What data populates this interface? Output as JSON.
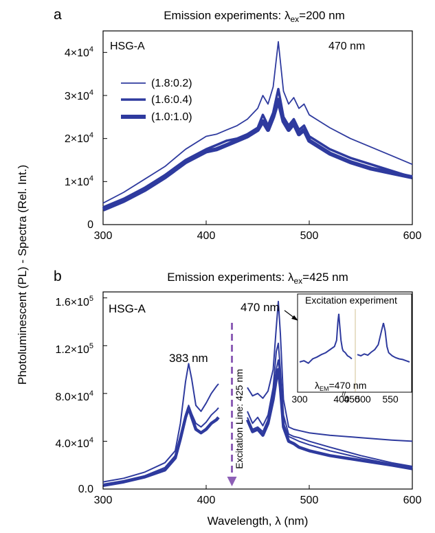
{
  "figure": {
    "ylabel": "Photoluminescent (PL) - Spectra (Rel. Int.)",
    "xlabel": "Wavelength, λ (nm)"
  },
  "chart_data": [
    {
      "panel": "a",
      "type": "line",
      "title": "Emission experiments: λex=200 nm",
      "sample_label": "HSG-A",
      "peak_annotation": "470 nm",
      "xlim": [
        300,
        600
      ],
      "ylim": [
        0,
        45000
      ],
      "x_ticks": [
        "300",
        "400",
        "500",
        "600"
      ],
      "y_ticks": [
        "0",
        "1×10^4",
        "2×10^4",
        "3×10^4",
        "4×10^4"
      ],
      "legend_position": "top-left",
      "color": "#2e3a9e",
      "series": [
        {
          "name": "(1.8:0.2)",
          "x": [
            300,
            320,
            340,
            360,
            380,
            400,
            410,
            420,
            430,
            440,
            450,
            455,
            460,
            465,
            470,
            475,
            480,
            485,
            490,
            495,
            500,
            510,
            520,
            540,
            560,
            580,
            600
          ],
          "y": [
            5000,
            7500,
            10500,
            13500,
            17500,
            20500,
            21000,
            22000,
            23000,
            24500,
            27000,
            30000,
            28000,
            32000,
            42500,
            31000,
            28000,
            29500,
            27000,
            28000,
            25500,
            24000,
            22500,
            20000,
            18000,
            16000,
            14000
          ]
        },
        {
          "name": "(1.6:0.4)",
          "x": [
            300,
            320,
            340,
            360,
            380,
            400,
            410,
            420,
            430,
            440,
            450,
            455,
            460,
            465,
            470,
            475,
            480,
            485,
            490,
            495,
            500,
            510,
            520,
            540,
            560,
            580,
            600
          ],
          "y": [
            4000,
            6000,
            8500,
            11500,
            15000,
            17500,
            18500,
            19500,
            20000,
            21000,
            22500,
            25500,
            23000,
            26000,
            31500,
            25000,
            23000,
            24500,
            22000,
            23000,
            20500,
            19000,
            17500,
            15500,
            14000,
            12500,
            11000
          ]
        },
        {
          "name": "(1.0:1.0)",
          "x": [
            300,
            320,
            340,
            360,
            380,
            400,
            410,
            420,
            430,
            440,
            450,
            455,
            460,
            465,
            470,
            475,
            480,
            485,
            490,
            495,
            500,
            510,
            520,
            540,
            560,
            580,
            600
          ],
          "y": [
            3500,
            5500,
            8000,
            11000,
            14500,
            17000,
            17500,
            18500,
            19500,
            20500,
            22000,
            24000,
            22000,
            25000,
            29000,
            24000,
            22000,
            23500,
            21000,
            22000,
            19500,
            18000,
            16500,
            14500,
            13000,
            12000,
            11000
          ]
        }
      ]
    },
    {
      "panel": "b",
      "type": "line",
      "title": "Emission experiments: λex=425 nm",
      "sample_label": "HSG-A",
      "annotations": [
        "383 nm",
        "470 nm",
        "Excitation Line: 425 nm"
      ],
      "xlim": [
        300,
        600
      ],
      "ylim": [
        0,
        165000
      ],
      "x_ticks": [
        "300",
        "400",
        "500",
        "600"
      ],
      "y_ticks": [
        "0.0",
        "4.0×10^4",
        "8.0×10^4",
        "1.2×10^5",
        "1.6×10^5"
      ],
      "excitation_line_x": 425,
      "color": "#2e3a9e",
      "series": [
        {
          "x": [
            300,
            320,
            340,
            360,
            370,
            375,
            380,
            383,
            386,
            390,
            395,
            400,
            405,
            410,
            412
          ],
          "y": [
            6000,
            9000,
            14000,
            22000,
            32000,
            55000,
            90000,
            105000,
            92000,
            70000,
            65000,
            72000,
            80000,
            86000,
            88000
          ]
        },
        {
          "x": [
            300,
            320,
            340,
            360,
            370,
            375,
            380,
            383,
            386,
            390,
            395,
            400,
            405,
            410,
            412
          ],
          "y": [
            4000,
            7000,
            11000,
            18000,
            28000,
            45000,
            62000,
            70000,
            63000,
            55000,
            52000,
            56000,
            62000,
            66000,
            68000
          ]
        },
        {
          "x": [
            300,
            320,
            340,
            360,
            370,
            375,
            380,
            383,
            386,
            390,
            395,
            400,
            405,
            410,
            412
          ],
          "y": [
            3000,
            6000,
            10000,
            16000,
            26000,
            42000,
            60000,
            68000,
            60000,
            50000,
            47000,
            50000,
            55000,
            58000,
            60000
          ],
          "width": "thick"
        },
        {
          "x": [
            440,
            445,
            450,
            455,
            460,
            465,
            468,
            470,
            472,
            475,
            480,
            485,
            490,
            500,
            520,
            550,
            580,
            600
          ],
          "y": [
            85000,
            78000,
            80000,
            76000,
            82000,
            100000,
            135000,
            157000,
            130000,
            75000,
            52000,
            50000,
            49000,
            47000,
            45000,
            43000,
            41000,
            40000
          ]
        },
        {
          "x": [
            440,
            445,
            450,
            455,
            460,
            465,
            468,
            470,
            472,
            475,
            480,
            485,
            490,
            500,
            520,
            550,
            580,
            600
          ],
          "y": [
            65000,
            55000,
            60000,
            53000,
            62000,
            85000,
            115000,
            122000,
            100000,
            62000,
            46000,
            44000,
            43000,
            40000,
            35000,
            28000,
            22000,
            19000
          ]
        },
        {
          "x": [
            440,
            445,
            450,
            455,
            460,
            465,
            468,
            470,
            472,
            475,
            480,
            485,
            490,
            500,
            520,
            550,
            580,
            600
          ],
          "y": [
            60000,
            50000,
            52000,
            48000,
            58000,
            80000,
            100000,
            108000,
            90000,
            55000,
            44000,
            42000,
            40000,
            37000,
            32000,
            26000,
            21000,
            18000
          ]
        },
        {
          "x": [
            440,
            445,
            450,
            455,
            460,
            465,
            468,
            470,
            472,
            475,
            480,
            485,
            490,
            500,
            520,
            550,
            580,
            600
          ],
          "y": [
            58000,
            48000,
            50000,
            45000,
            55000,
            75000,
            92000,
            100000,
            85000,
            52000,
            40000,
            38000,
            35000,
            32000,
            28000,
            24000,
            20000,
            17000
          ],
          "width": "thick"
        }
      ]
    },
    {
      "panel": "b-inset",
      "type": "line",
      "title": "Excitation experiment",
      "annotation": "λEM=470 nm",
      "xlim": [
        300,
        580
      ],
      "x_ticks": [
        "300",
        "400",
        "450",
        "500",
        "550"
      ],
      "axis_break": true,
      "series": [
        {
          "x": [
            300,
            310,
            320,
            330,
            340,
            350,
            360,
            370,
            380,
            385,
            388,
            390,
            392,
            395,
            398,
            400,
            405,
            410,
            415,
            420
          ],
          "y": [
            0.2,
            0.22,
            0.18,
            0.25,
            0.28,
            0.32,
            0.35,
            0.4,
            0.45,
            0.55,
            0.85,
            0.98,
            0.8,
            0.55,
            0.42,
            0.38,
            0.35,
            0.3,
            0.28,
            0.25
          ]
        },
        {
          "x": [
            430,
            440,
            450,
            460,
            470,
            480,
            490,
            500,
            505,
            510,
            515,
            520,
            530,
            540,
            550,
            560,
            570,
            580
          ],
          "y": [
            0.32,
            0.3,
            0.33,
            0.31,
            0.36,
            0.4,
            0.48,
            0.72,
            0.83,
            0.7,
            0.45,
            0.35,
            0.3,
            0.27,
            0.25,
            0.24,
            0.22,
            0.2
          ]
        }
      ]
    }
  ]
}
